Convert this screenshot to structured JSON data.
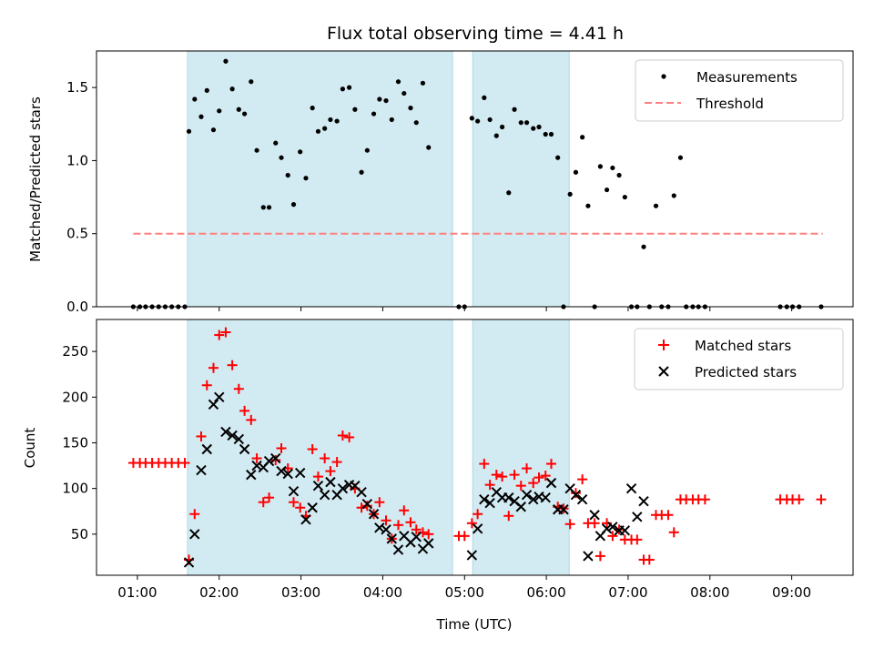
{
  "chart_data": {
    "title": "Flux total observing time = 4.41 h",
    "xlabel": "Time (UTC)",
    "x_ticks": [
      {
        "hour": 1,
        "label": "01:00"
      },
      {
        "hour": 2,
        "label": "02:00"
      },
      {
        "hour": 3,
        "label": "03:00"
      },
      {
        "hour": 4,
        "label": "04:00"
      },
      {
        "hour": 5,
        "label": "05:00"
      },
      {
        "hour": 6,
        "label": "06:00"
      },
      {
        "hour": 7,
        "label": "07:00"
      },
      {
        "hour": 8,
        "label": "08:00"
      },
      {
        "hour": 9,
        "label": "09:00"
      }
    ],
    "xlim": [
      0.5,
      9.75
    ],
    "shaded_intervals": [
      [
        1.613,
        4.853
      ],
      [
        5.1,
        6.28
      ]
    ],
    "colors": {
      "shade": "#add8e6",
      "matched": "#ff0000",
      "predicted": "#000000",
      "threshold": "#ff7f7f",
      "measurement": "#000000"
    },
    "top": {
      "type": "scatter",
      "ylabel": "Matched/Predicted stars",
      "ylim": [
        0,
        1.75
      ],
      "yticks": [
        {
          "v": 0,
          "label": "0.0"
        },
        {
          "v": 0.5,
          "label": "0.5"
        },
        {
          "v": 1,
          "label": "1.0"
        },
        {
          "v": 1.5,
          "label": "1.5"
        }
      ],
      "threshold": {
        "y": 0.5,
        "x_range": [
          0.95,
          9.38
        ]
      },
      "legend": [
        "Measurements",
        "Threshold"
      ],
      "measurements": [
        [
          0.95,
          0
        ],
        [
          1.03,
          0
        ],
        [
          1.1,
          0
        ],
        [
          1.18,
          0
        ],
        [
          1.26,
          0
        ],
        [
          1.34,
          0
        ],
        [
          1.42,
          0
        ],
        [
          1.5,
          0
        ],
        [
          1.58,
          0
        ],
        [
          1.63,
          1.2
        ],
        [
          1.7,
          1.42
        ],
        [
          1.78,
          1.3
        ],
        [
          1.85,
          1.48
        ],
        [
          1.93,
          1.21
        ],
        [
          2.0,
          1.34
        ],
        [
          2.08,
          1.68
        ],
        [
          2.16,
          1.49
        ],
        [
          2.24,
          1.35
        ],
        [
          2.31,
          1.32
        ],
        [
          2.39,
          1.54
        ],
        [
          2.46,
          1.07
        ],
        [
          2.54,
          0.68
        ],
        [
          2.61,
          0.68
        ],
        [
          2.69,
          1.12
        ],
        [
          2.76,
          1.02
        ],
        [
          2.84,
          0.9
        ],
        [
          2.91,
          0.7
        ],
        [
          2.99,
          1.06
        ],
        [
          3.06,
          0.88
        ],
        [
          3.14,
          1.36
        ],
        [
          3.21,
          1.2
        ],
        [
          3.29,
          1.22
        ],
        [
          3.36,
          1.28
        ],
        [
          3.44,
          1.27
        ],
        [
          3.51,
          1.49
        ],
        [
          3.59,
          1.5
        ],
        [
          3.66,
          1.35
        ],
        [
          3.74,
          0.92
        ],
        [
          3.81,
          1.07
        ],
        [
          3.89,
          1.32
        ],
        [
          3.96,
          1.42
        ],
        [
          4.04,
          1.41
        ],
        [
          4.11,
          1.28
        ],
        [
          4.19,
          1.54
        ],
        [
          4.26,
          1.46
        ],
        [
          4.34,
          1.36
        ],
        [
          4.41,
          1.26
        ],
        [
          4.49,
          1.53
        ],
        [
          4.56,
          1.09
        ],
        [
          4.93,
          0
        ],
        [
          5.0,
          0
        ],
        [
          5.09,
          1.29
        ],
        [
          5.16,
          1.27
        ],
        [
          5.24,
          1.43
        ],
        [
          5.31,
          1.28
        ],
        [
          5.39,
          1.17
        ],
        [
          5.46,
          1.23
        ],
        [
          5.54,
          0.78
        ],
        [
          5.61,
          1.35
        ],
        [
          5.69,
          1.26
        ],
        [
          5.76,
          1.26
        ],
        [
          5.84,
          1.22
        ],
        [
          5.91,
          1.23
        ],
        [
          5.99,
          1.18
        ],
        [
          6.06,
          1.18
        ],
        [
          6.14,
          1.02
        ],
        [
          6.21,
          0
        ],
        [
          6.29,
          0.77
        ],
        [
          6.36,
          0.92
        ],
        [
          6.44,
          1.16
        ],
        [
          6.51,
          0.69
        ],
        [
          6.59,
          0
        ],
        [
          6.66,
          0.96
        ],
        [
          6.74,
          0.8
        ],
        [
          6.81,
          0.95
        ],
        [
          6.89,
          0.9
        ],
        [
          6.96,
          0.75
        ],
        [
          7.04,
          0
        ],
        [
          7.11,
          0
        ],
        [
          7.19,
          0.41
        ],
        [
          7.26,
          0
        ],
        [
          7.34,
          0.69
        ],
        [
          7.41,
          0
        ],
        [
          7.49,
          0
        ],
        [
          7.56,
          0.76
        ],
        [
          7.64,
          1.02
        ],
        [
          7.71,
          0
        ],
        [
          7.79,
          0
        ],
        [
          7.86,
          0
        ],
        [
          7.94,
          0
        ],
        [
          8.86,
          0
        ],
        [
          8.94,
          0
        ],
        [
          9.01,
          0
        ],
        [
          9.09,
          0
        ],
        [
          9.36,
          0
        ]
      ]
    },
    "bottom": {
      "type": "scatter",
      "ylabel": "Count",
      "ylim": [
        5,
        285
      ],
      "yticks": [
        {
          "v": 50,
          "label": "50"
        },
        {
          "v": 100,
          "label": "100"
        },
        {
          "v": 150,
          "label": "150"
        },
        {
          "v": 200,
          "label": "200"
        },
        {
          "v": 250,
          "label": "250"
        }
      ],
      "legend": [
        "Matched stars",
        "Predicted stars"
      ],
      "matched": [
        [
          0.95,
          128
        ],
        [
          1.03,
          128
        ],
        [
          1.1,
          128
        ],
        [
          1.18,
          128
        ],
        [
          1.26,
          128
        ],
        [
          1.34,
          128
        ],
        [
          1.42,
          128
        ],
        [
          1.5,
          128
        ],
        [
          1.58,
          128
        ],
        [
          1.63,
          22
        ],
        [
          1.7,
          72
        ],
        [
          1.78,
          157
        ],
        [
          1.85,
          213
        ],
        [
          1.93,
          232
        ],
        [
          2.0,
          268
        ],
        [
          2.08,
          271
        ],
        [
          2.16,
          235
        ],
        [
          2.24,
          209
        ],
        [
          2.31,
          185
        ],
        [
          2.39,
          175
        ],
        [
          2.46,
          133
        ],
        [
          2.54,
          85
        ],
        [
          2.61,
          90
        ],
        [
          2.69,
          131
        ],
        [
          2.76,
          144
        ],
        [
          2.84,
          122
        ],
        [
          2.91,
          85
        ],
        [
          2.99,
          79
        ],
        [
          3.06,
          70
        ],
        [
          3.14,
          143
        ],
        [
          3.21,
          113
        ],
        [
          3.29,
          133
        ],
        [
          3.36,
          119
        ],
        [
          3.44,
          129
        ],
        [
          3.51,
          158
        ],
        [
          3.59,
          156
        ],
        [
          3.66,
          100
        ],
        [
          3.74,
          79
        ],
        [
          3.81,
          81
        ],
        [
          3.89,
          72
        ],
        [
          3.96,
          85
        ],
        [
          4.04,
          65
        ],
        [
          4.11,
          45
        ],
        [
          4.19,
          60
        ],
        [
          4.26,
          76
        ],
        [
          4.34,
          63
        ],
        [
          4.41,
          55
        ],
        [
          4.49,
          52
        ],
        [
          4.56,
          50
        ],
        [
          4.93,
          48
        ],
        [
          5.0,
          48
        ],
        [
          5.09,
          62
        ],
        [
          5.16,
          72
        ],
        [
          5.24,
          127
        ],
        [
          5.31,
          104
        ],
        [
          5.39,
          115
        ],
        [
          5.46,
          113
        ],
        [
          5.54,
          70
        ],
        [
          5.61,
          115
        ],
        [
          5.69,
          103
        ],
        [
          5.76,
          122
        ],
        [
          5.84,
          106
        ],
        [
          5.91,
          112
        ],
        [
          5.99,
          114
        ],
        [
          6.06,
          127
        ],
        [
          6.14,
          80
        ],
        [
          6.21,
          78
        ],
        [
          6.29,
          61
        ],
        [
          6.36,
          95
        ],
        [
          6.44,
          110
        ],
        [
          6.51,
          62
        ],
        [
          6.59,
          62
        ],
        [
          6.66,
          26
        ],
        [
          6.74,
          62
        ],
        [
          6.81,
          48
        ],
        [
          6.89,
          55
        ],
        [
          6.96,
          44
        ],
        [
          7.04,
          44
        ],
        [
          7.11,
          44
        ],
        [
          7.19,
          22
        ],
        [
          7.26,
          22
        ],
        [
          7.34,
          71
        ],
        [
          7.41,
          71
        ],
        [
          7.49,
          71
        ],
        [
          7.56,
          52
        ],
        [
          7.64,
          88
        ],
        [
          7.71,
          88
        ],
        [
          7.79,
          88
        ],
        [
          7.86,
          88
        ],
        [
          7.94,
          88
        ],
        [
          8.86,
          88
        ],
        [
          8.94,
          88
        ],
        [
          9.01,
          88
        ],
        [
          9.09,
          88
        ],
        [
          9.36,
          88
        ]
      ],
      "predicted": [
        [
          1.63,
          19
        ],
        [
          1.7,
          50
        ],
        [
          1.78,
          120
        ],
        [
          1.85,
          143
        ],
        [
          1.93,
          192
        ],
        [
          2.0,
          200
        ],
        [
          2.08,
          162
        ],
        [
          2.16,
          158
        ],
        [
          2.24,
          154
        ],
        [
          2.31,
          143
        ],
        [
          2.39,
          115
        ],
        [
          2.46,
          125
        ],
        [
          2.54,
          123
        ],
        [
          2.61,
          130
        ],
        [
          2.69,
          133
        ],
        [
          2.76,
          119
        ],
        [
          2.84,
          116
        ],
        [
          2.91,
          97
        ],
        [
          2.99,
          117
        ],
        [
          3.06,
          66
        ],
        [
          3.14,
          79
        ],
        [
          3.21,
          103
        ],
        [
          3.29,
          93
        ],
        [
          3.36,
          107
        ],
        [
          3.44,
          93
        ],
        [
          3.51,
          100
        ],
        [
          3.59,
          104
        ],
        [
          3.66,
          103
        ],
        [
          3.74,
          96
        ],
        [
          3.81,
          83
        ],
        [
          3.89,
          72
        ],
        [
          3.96,
          57
        ],
        [
          4.04,
          55
        ],
        [
          4.11,
          45
        ],
        [
          4.19,
          33
        ],
        [
          4.26,
          48
        ],
        [
          4.34,
          41
        ],
        [
          4.41,
          47
        ],
        [
          4.49,
          34
        ],
        [
          4.56,
          40
        ],
        [
          5.09,
          27
        ],
        [
          5.16,
          56
        ],
        [
          5.24,
          88
        ],
        [
          5.31,
          84
        ],
        [
          5.39,
          96
        ],
        [
          5.46,
          90
        ],
        [
          5.54,
          90
        ],
        [
          5.61,
          86
        ],
        [
          5.69,
          80
        ],
        [
          5.76,
          93
        ],
        [
          5.84,
          88
        ],
        [
          5.91,
          91
        ],
        [
          5.99,
          90
        ],
        [
          6.06,
          106
        ],
        [
          6.14,
          77
        ],
        [
          6.21,
          77
        ],
        [
          6.29,
          100
        ],
        [
          6.36,
          93
        ],
        [
          6.44,
          88
        ],
        [
          6.51,
          26
        ],
        [
          6.59,
          71
        ],
        [
          6.66,
          48
        ],
        [
          6.74,
          56
        ],
        [
          6.81,
          58
        ],
        [
          6.89,
          54
        ],
        [
          6.96,
          54
        ],
        [
          7.04,
          100
        ],
        [
          7.11,
          69
        ],
        [
          7.19,
          86
        ]
      ]
    }
  }
}
